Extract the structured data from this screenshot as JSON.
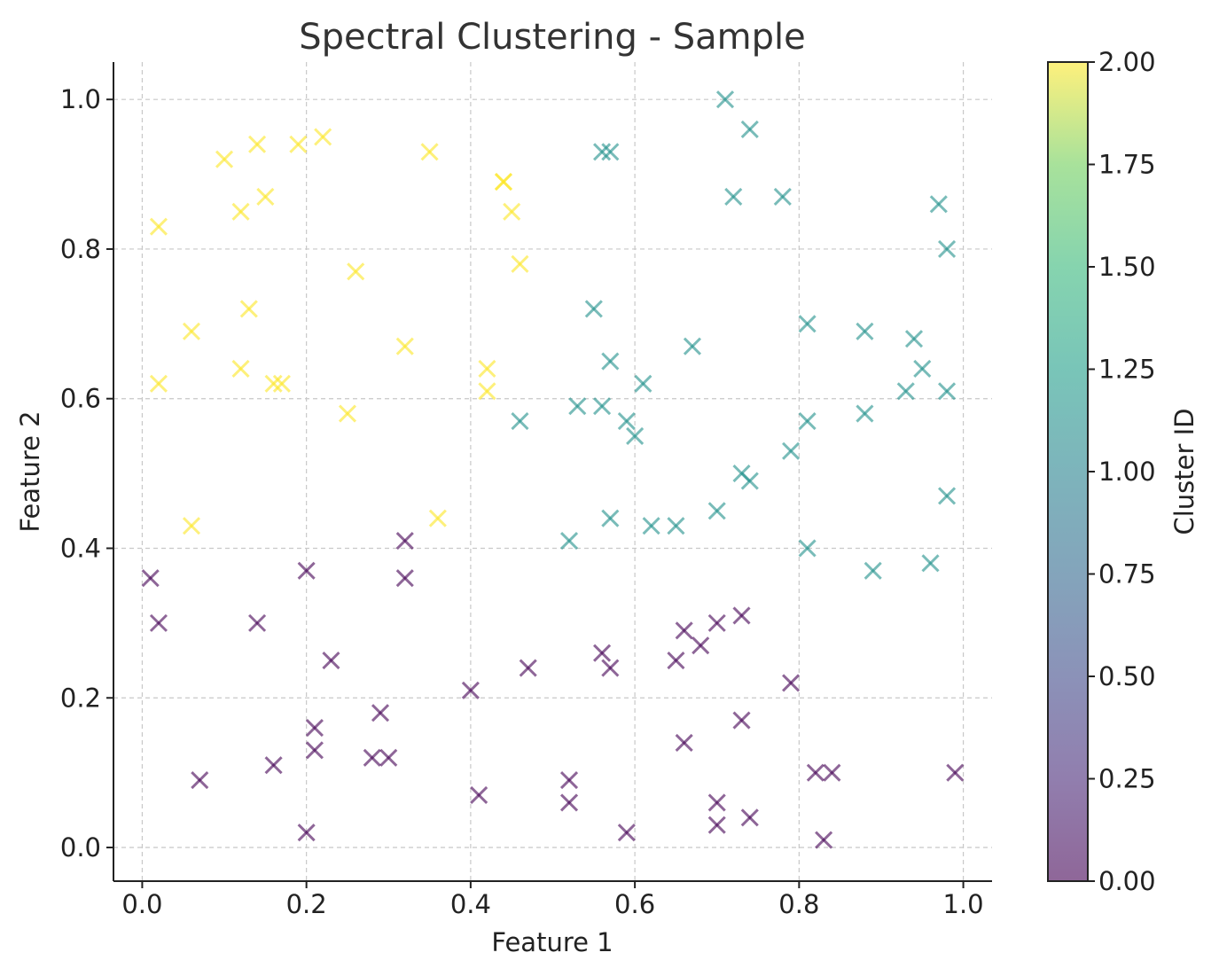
{
  "chart_data": {
    "type": "scatter",
    "title": "Spectral Clustering - Sample",
    "xlabel": "Feature 1",
    "ylabel": "Feature 2",
    "xlim": [
      -0.035,
      1.035
    ],
    "ylim": [
      -0.045,
      1.05
    ],
    "xticks": [
      "0.0",
      "0.2",
      "0.4",
      "0.6",
      "0.8",
      "1.0"
    ],
    "yticks": [
      "0.0",
      "0.2",
      "0.4",
      "0.6",
      "0.8",
      "1.0"
    ],
    "grid": true,
    "marker": "x",
    "colorbar": {
      "label": "Cluster ID",
      "range": [
        0,
        2
      ],
      "ticks": [
        "0.00",
        "0.25",
        "0.50",
        "0.75",
        "1.00",
        "1.25",
        "1.50",
        "1.75",
        "2.00"
      ],
      "colormap": "viridis"
    },
    "cluster_colors": [
      "#440154",
      "#21918c",
      "#fde725"
    ],
    "series": [
      {
        "cluster": 2,
        "points": [
          [
            0.02,
            0.83
          ],
          [
            0.1,
            0.92
          ],
          [
            0.12,
            0.85
          ],
          [
            0.14,
            0.94
          ],
          [
            0.15,
            0.87
          ],
          [
            0.19,
            0.94
          ],
          [
            0.22,
            0.95
          ],
          [
            0.35,
            0.93
          ],
          [
            0.44,
            0.89
          ],
          [
            0.44,
            0.89
          ],
          [
            0.45,
            0.85
          ],
          [
            0.46,
            0.78
          ],
          [
            0.26,
            0.77
          ],
          [
            0.06,
            0.69
          ],
          [
            0.13,
            0.72
          ],
          [
            0.12,
            0.64
          ],
          [
            0.02,
            0.62
          ],
          [
            0.16,
            0.62
          ],
          [
            0.17,
            0.62
          ],
          [
            0.32,
            0.67
          ],
          [
            0.42,
            0.64
          ],
          [
            0.42,
            0.61
          ],
          [
            0.25,
            0.58
          ],
          [
            0.06,
            0.43
          ],
          [
            0.36,
            0.44
          ]
        ]
      },
      {
        "cluster": 1,
        "points": [
          [
            0.71,
            1.0
          ],
          [
            0.74,
            0.96
          ],
          [
            0.56,
            0.93
          ],
          [
            0.57,
            0.93
          ],
          [
            0.72,
            0.87
          ],
          [
            0.78,
            0.87
          ],
          [
            0.97,
            0.86
          ],
          [
            0.98,
            0.8
          ],
          [
            0.55,
            0.72
          ],
          [
            0.81,
            0.7
          ],
          [
            0.88,
            0.69
          ],
          [
            0.94,
            0.68
          ],
          [
            0.67,
            0.67
          ],
          [
            0.57,
            0.65
          ],
          [
            0.95,
            0.64
          ],
          [
            0.61,
            0.62
          ],
          [
            0.93,
            0.61
          ],
          [
            0.98,
            0.61
          ],
          [
            0.53,
            0.59
          ],
          [
            0.56,
            0.59
          ],
          [
            0.59,
            0.57
          ],
          [
            0.46,
            0.57
          ],
          [
            0.81,
            0.57
          ],
          [
            0.88,
            0.58
          ],
          [
            0.6,
            0.55
          ],
          [
            0.79,
            0.53
          ],
          [
            0.73,
            0.5
          ],
          [
            0.74,
            0.49
          ],
          [
            0.98,
            0.47
          ],
          [
            0.7,
            0.45
          ],
          [
            0.57,
            0.44
          ],
          [
            0.62,
            0.43
          ],
          [
            0.65,
            0.43
          ],
          [
            0.52,
            0.41
          ],
          [
            0.81,
            0.4
          ],
          [
            0.96,
            0.38
          ],
          [
            0.89,
            0.37
          ]
        ]
      },
      {
        "cluster": 0,
        "points": [
          [
            0.32,
            0.41
          ],
          [
            0.01,
            0.36
          ],
          [
            0.2,
            0.37
          ],
          [
            0.32,
            0.36
          ],
          [
            0.02,
            0.3
          ],
          [
            0.14,
            0.3
          ],
          [
            0.23,
            0.25
          ],
          [
            0.73,
            0.31
          ],
          [
            0.7,
            0.3
          ],
          [
            0.66,
            0.29
          ],
          [
            0.68,
            0.27
          ],
          [
            0.56,
            0.26
          ],
          [
            0.65,
            0.25
          ],
          [
            0.47,
            0.24
          ],
          [
            0.57,
            0.24
          ],
          [
            0.4,
            0.21
          ],
          [
            0.79,
            0.22
          ],
          [
            0.29,
            0.18
          ],
          [
            0.73,
            0.17
          ],
          [
            0.21,
            0.16
          ],
          [
            0.66,
            0.14
          ],
          [
            0.21,
            0.13
          ],
          [
            0.28,
            0.12
          ],
          [
            0.3,
            0.12
          ],
          [
            0.16,
            0.11
          ],
          [
            0.07,
            0.09
          ],
          [
            0.52,
            0.09
          ],
          [
            0.82,
            0.1
          ],
          [
            0.84,
            0.1
          ],
          [
            0.99,
            0.1
          ],
          [
            0.41,
            0.07
          ],
          [
            0.52,
            0.06
          ],
          [
            0.7,
            0.06
          ],
          [
            0.74,
            0.04
          ],
          [
            0.7,
            0.03
          ],
          [
            0.2,
            0.02
          ],
          [
            0.59,
            0.02
          ],
          [
            0.83,
            0.01
          ]
        ]
      }
    ]
  }
}
